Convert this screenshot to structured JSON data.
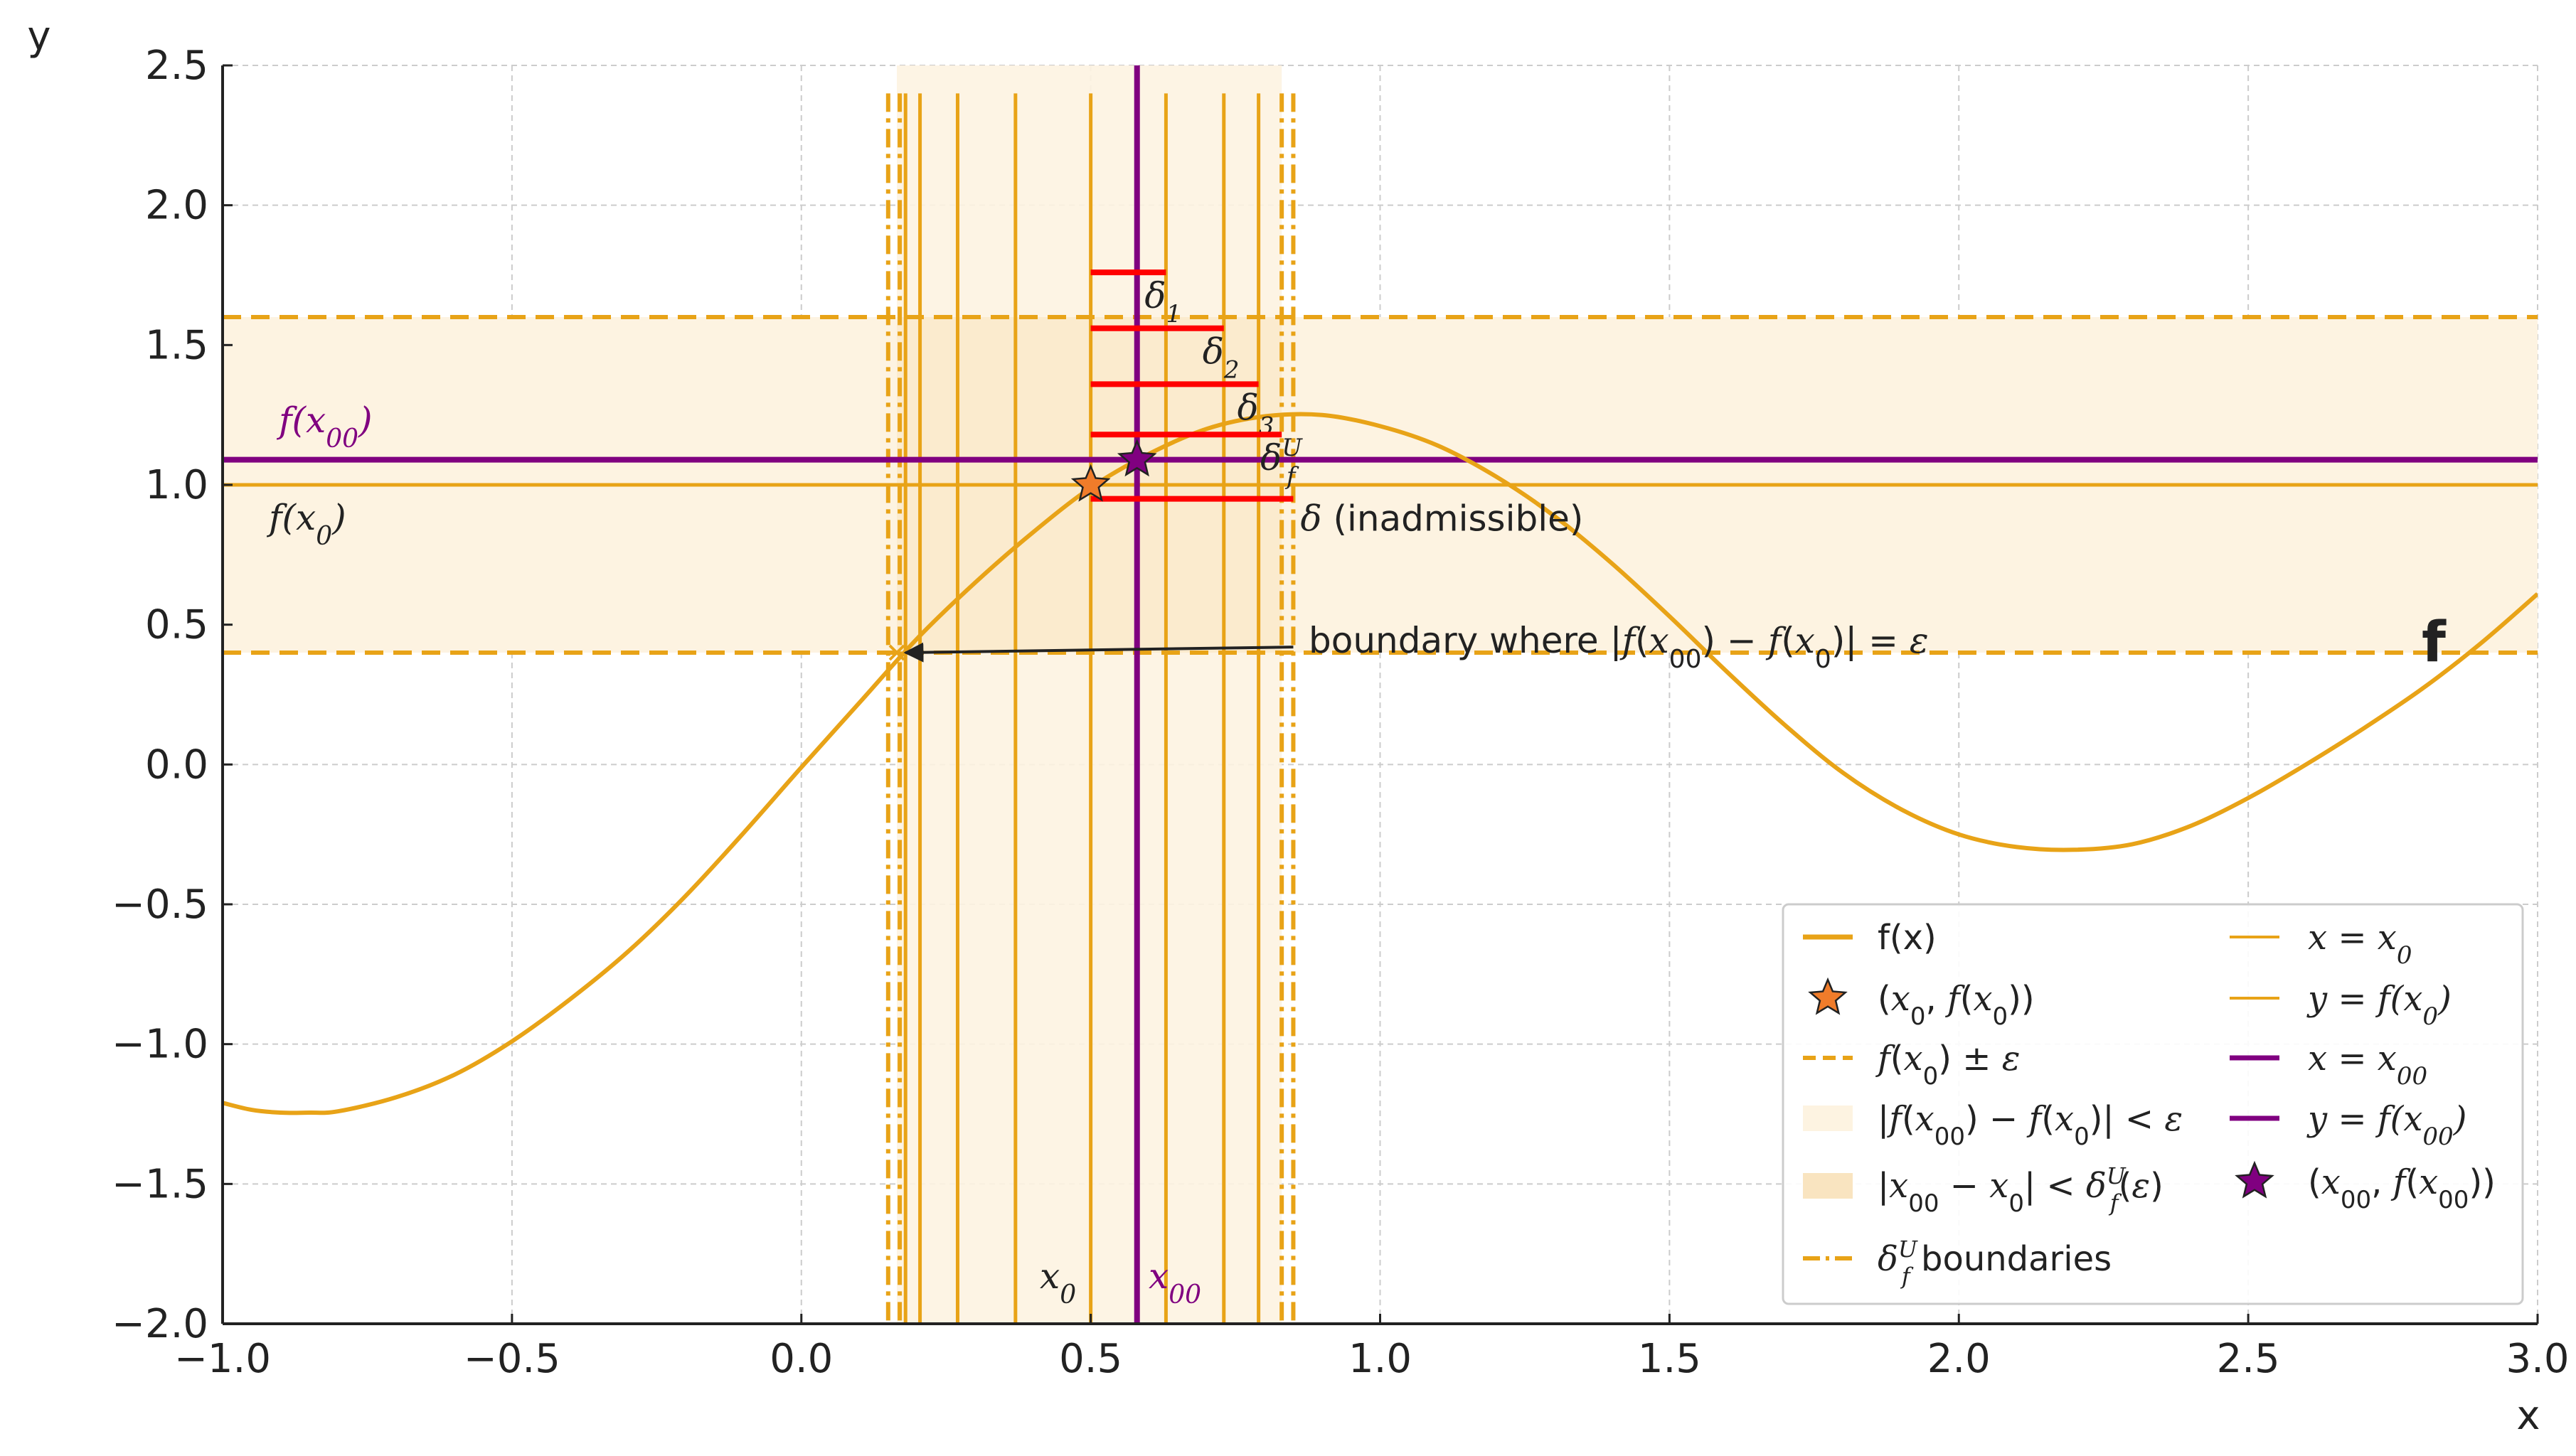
{
  "chart_data": {
    "type": "line",
    "title": "",
    "xlabel": "x",
    "ylabel": "y",
    "xlim": [
      -1.0,
      3.0
    ],
    "ylim": [
      -2.0,
      2.5
    ],
    "grid": true,
    "x_ticks": [
      -1.0,
      -0.5,
      0.0,
      0.5,
      1.0,
      1.5,
      2.0,
      2.5,
      3.0
    ],
    "x_tick_labels": [
      "−1.0",
      "−0.5",
      "0.0",
      "0.5",
      "1.0",
      "1.5",
      "2.0",
      "2.5",
      "3.0"
    ],
    "y_ticks": [
      2.5,
      2.0,
      1.5,
      1.0,
      0.5,
      0.0,
      -0.5,
      -1.0,
      -1.5,
      -2.0
    ],
    "y_tick_labels": [
      "2.5",
      "2.0",
      "1.5",
      "1.0",
      "0.5",
      "0.0",
      "−0.5",
      "−1.0",
      "−1.5",
      "−2.0"
    ],
    "colors": {
      "orange": "#e8a317",
      "orange_dark": "#e09b0e",
      "purple": "#800080",
      "red": "#ff0000",
      "band_light": "#fdf3e1",
      "band_dark": "#f9e4c0",
      "star_orange": "#f07c2a",
      "grid": "#cccccc"
    },
    "series": [
      {
        "name": "f(x)",
        "x": [
          -1.0,
          -0.95,
          -0.9,
          -0.85,
          -0.8,
          -0.7,
          -0.6,
          -0.5,
          -0.4,
          -0.3,
          -0.2,
          -0.1,
          0.0,
          0.1,
          0.2,
          0.3,
          0.4,
          0.5,
          0.6,
          0.7,
          0.8,
          0.9,
          1.0,
          1.1,
          1.2,
          1.3,
          1.4,
          1.5,
          1.6,
          1.7,
          1.8,
          1.9,
          2.0,
          2.1,
          2.2,
          2.3,
          2.4,
          2.5,
          2.6,
          2.7,
          2.8,
          2.9,
          3.0
        ],
        "y": [
          -1.21,
          -1.235,
          -1.245,
          -1.245,
          -1.24,
          -1.19,
          -1.11,
          -0.99,
          -0.84,
          -0.67,
          -0.47,
          -0.245,
          -0.01,
          0.22,
          0.45,
          0.65,
          0.83,
          0.99,
          1.11,
          1.2,
          1.245,
          1.25,
          1.21,
          1.14,
          1.03,
          0.89,
          0.72,
          0.53,
          0.33,
          0.14,
          -0.03,
          -0.16,
          -0.25,
          -0.295,
          -0.305,
          -0.285,
          -0.22,
          -0.12,
          0.0,
          0.13,
          0.27,
          0.43,
          0.61
        ]
      }
    ],
    "f_x0": 1.0,
    "f_x00": 1.09,
    "epsilon": 0.6,
    "f_band": [
      0.4,
      1.6
    ],
    "x0": 0.5,
    "x00": 0.58,
    "x_band": [
      0.17,
      0.83
    ],
    "delta_boundaries": [
      0.15,
      0.17,
      0.83,
      0.85
    ],
    "orange_vlines": [
      0.18,
      0.205,
      0.27,
      0.37,
      0.5,
      0.63,
      0.73,
      0.79
    ],
    "delta_lines": [
      {
        "label": "δ",
        "sub": "1",
        "y": 1.76,
        "x_end": 0.63
      },
      {
        "label": "δ",
        "sub": "2",
        "y": 1.56,
        "x_end": 0.73
      },
      {
        "label": "δ",
        "sub": "3",
        "y": 1.36,
        "x_end": 0.79
      },
      {
        "label": "δ",
        "sub": "f",
        "sup": "U",
        "y": 1.18,
        "x_end": 0.83
      },
      {
        "label": "δ (inadmissible)",
        "y": 0.95,
        "x_end": 0.85
      }
    ],
    "points": [
      {
        "name": "(x0, f(x0))",
        "x": 0.5,
        "y": 1.0
      },
      {
        "name": "(x00, f(x00))",
        "x": 0.58,
        "y": 1.09
      }
    ],
    "annotations": {
      "fx00_label": "f(x00)",
      "fx0_label": "f(x0)",
      "x0_label": "x0",
      "x00_label": "x00",
      "boundary_text": "boundary where |f(x00) − f(x0)| = ε",
      "boundary_arrow": {
        "from": [
          0.85,
          0.42
        ],
        "to": [
          0.18,
          0.4
        ]
      },
      "f_label": "f"
    },
    "legend": {
      "position": "lower-right",
      "entries": [
        "f(x)",
        "(x0, f(x0))",
        "f(x0) ± ε",
        "|f(x00) − f(x0)| < ε",
        "|x00 − x0| < δ_f^U(ε)",
        "δ_f^U boundaries",
        "x = x0",
        "y = f(x0)",
        "x = x00",
        "y = f(x00)",
        "(x00, f(x00))"
      ]
    }
  }
}
